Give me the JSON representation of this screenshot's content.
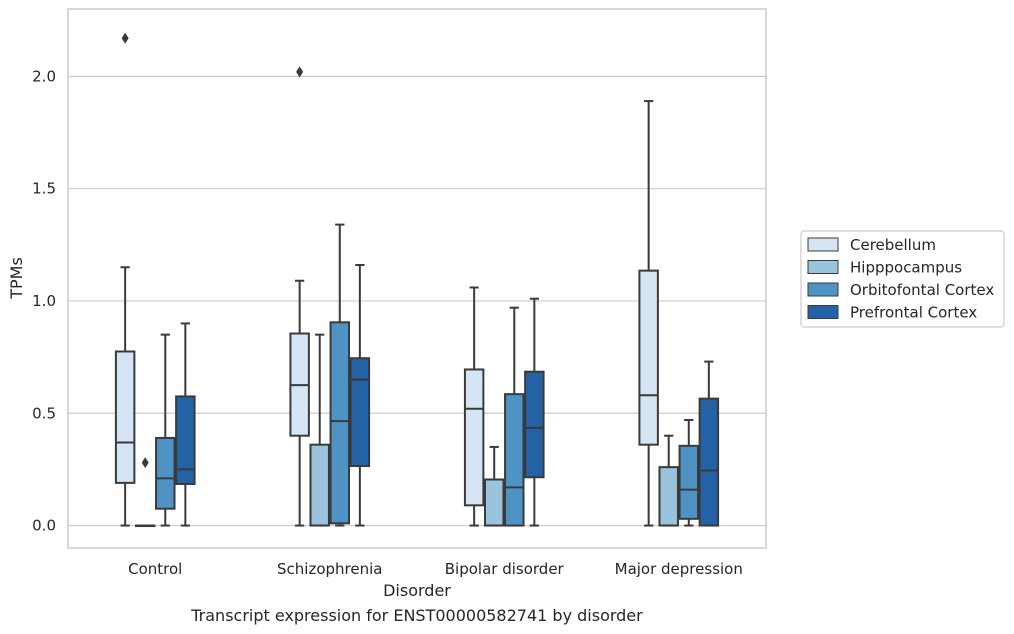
{
  "caption": "Transcript expression for ENST00000582741 by disorder",
  "chart_data": {
    "type": "box",
    "title": "",
    "xlabel": "Disorder",
    "ylabel": "TPMs",
    "ylim": [
      -0.1,
      2.3
    ],
    "yticks": [
      0.0,
      0.5,
      1.0,
      1.5,
      2.0
    ],
    "ytick_labels": [
      "0.0",
      "0.5",
      "1.0",
      "1.5",
      "2.0"
    ],
    "grid": "horizontal",
    "legend_position": "right",
    "categories": [
      "Control",
      "Schizophrenia",
      "Bipolar disorder",
      "Major depression"
    ],
    "series": [
      {
        "name": "Cerebellum",
        "color": "#d6e5f3",
        "boxes": [
          {
            "whislo": 0.0,
            "q1": 0.19,
            "med": 0.37,
            "q3": 0.775,
            "whishi": 1.15,
            "fliers": [
              2.17
            ]
          },
          {
            "whislo": 0.0,
            "q1": 0.4,
            "med": 0.625,
            "q3": 0.855,
            "whishi": 1.09,
            "fliers": [
              2.02
            ]
          },
          {
            "whislo": 0.0,
            "q1": 0.09,
            "med": 0.52,
            "q3": 0.695,
            "whishi": 1.06,
            "fliers": []
          },
          {
            "whislo": 0.0,
            "q1": 0.36,
            "med": 0.58,
            "q3": 1.135,
            "whishi": 1.89,
            "fliers": []
          }
        ]
      },
      {
        "name": "Hipppocampus",
        "color": "#9ac3de",
        "boxes": [
          {
            "whislo": 0.0,
            "q1": 0.0,
            "med": 0.0,
            "q3": 0.0,
            "whishi": 0.0,
            "fliers": [
              0.28
            ]
          },
          {
            "whislo": 0.0,
            "q1": 0.0,
            "med": 0.0,
            "q3": 0.36,
            "whishi": 0.85,
            "fliers": []
          },
          {
            "whislo": 0.0,
            "q1": 0.0,
            "med": 0.0,
            "q3": 0.205,
            "whishi": 0.35,
            "fliers": []
          },
          {
            "whislo": 0.0,
            "q1": 0.0,
            "med": 0.0,
            "q3": 0.26,
            "whishi": 0.4,
            "fliers": []
          }
        ]
      },
      {
        "name": "Orbitofontal Cortex",
        "color": "#4f93c4",
        "boxes": [
          {
            "whislo": 0.0,
            "q1": 0.075,
            "med": 0.21,
            "q3": 0.39,
            "whishi": 0.85,
            "fliers": []
          },
          {
            "whislo": 0.0,
            "q1": 0.01,
            "med": 0.465,
            "q3": 0.905,
            "whishi": 1.34,
            "fliers": []
          },
          {
            "whislo": 0.0,
            "q1": 0.0,
            "med": 0.17,
            "q3": 0.585,
            "whishi": 0.97,
            "fliers": []
          },
          {
            "whislo": 0.0,
            "q1": 0.03,
            "med": 0.16,
            "q3": 0.355,
            "whishi": 0.47,
            "fliers": []
          }
        ]
      },
      {
        "name": "Prefrontal Cortex",
        "color": "#2462a6",
        "boxes": [
          {
            "whislo": 0.0,
            "q1": 0.185,
            "med": 0.25,
            "q3": 0.575,
            "whishi": 0.9,
            "fliers": []
          },
          {
            "whislo": 0.0,
            "q1": 0.265,
            "med": 0.65,
            "q3": 0.745,
            "whishi": 1.16,
            "fliers": []
          },
          {
            "whislo": 0.0,
            "q1": 0.215,
            "med": 0.435,
            "q3": 0.685,
            "whishi": 1.01,
            "fliers": []
          },
          {
            "whislo": 0.0,
            "q1": 0.0,
            "med": 0.245,
            "q3": 0.565,
            "whishi": 0.73,
            "fliers": []
          }
        ]
      }
    ]
  }
}
